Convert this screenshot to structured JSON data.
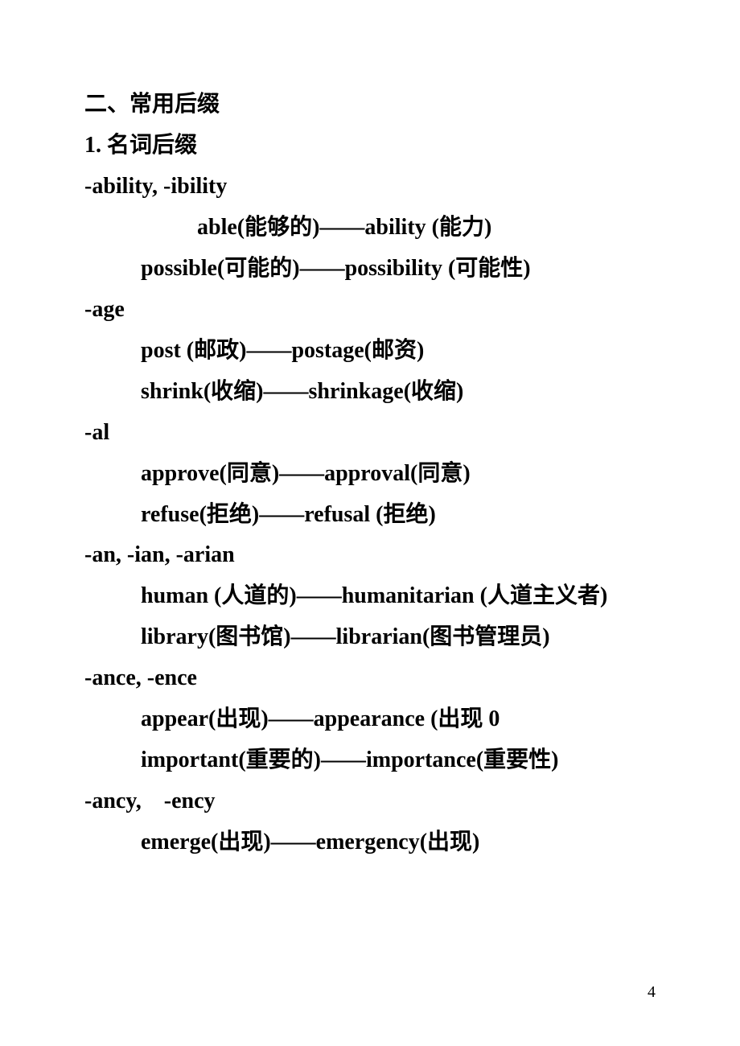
{
  "heading": "二、常用后缀",
  "subheading": "1. 名词后缀",
  "sections": [
    {
      "suffix": "-ability, -ibility",
      "entries": [
        {
          "indent": "indent2",
          "text": "able(能够的)——ability (能力)"
        },
        {
          "indent": "indent1",
          "text": "possible(可能的)——possibility (可能性)"
        }
      ]
    },
    {
      "suffix": "-age",
      "entries": [
        {
          "indent": "indent1",
          "text": "post (邮政)——postage(邮资)"
        },
        {
          "indent": "indent1",
          "text": "shrink(收缩)——shrinkage(收缩)"
        }
      ]
    },
    {
      "suffix": "-al",
      "entries": [
        {
          "indent": "indent1",
          "text": "approve(同意)——approval(同意)"
        },
        {
          "indent": "indent1",
          "text": "refuse(拒绝)——refusal (拒绝)"
        }
      ]
    },
    {
      "suffix": "-an, -ian, -arian",
      "entries": [
        {
          "indent": "indent1",
          "text": "human (人道的)——humanitarian (人道主义者)"
        },
        {
          "indent": "indent1",
          "text": "library(图书馆)——librarian(图书管理员)"
        }
      ]
    },
    {
      "suffix": "-ance, -ence",
      "entries": [
        {
          "indent": "indent1",
          "text": "appear(出现)——appearance (出现 0"
        },
        {
          "indent": "indent1",
          "text": "important(重要的)——importance(重要性)"
        }
      ]
    },
    {
      "suffix": "-ancy, -ency",
      "entries": [
        {
          "indent": "indent1",
          "text": "emerge(出现)——emergency(出现)"
        }
      ]
    }
  ],
  "pageNumber": "4"
}
